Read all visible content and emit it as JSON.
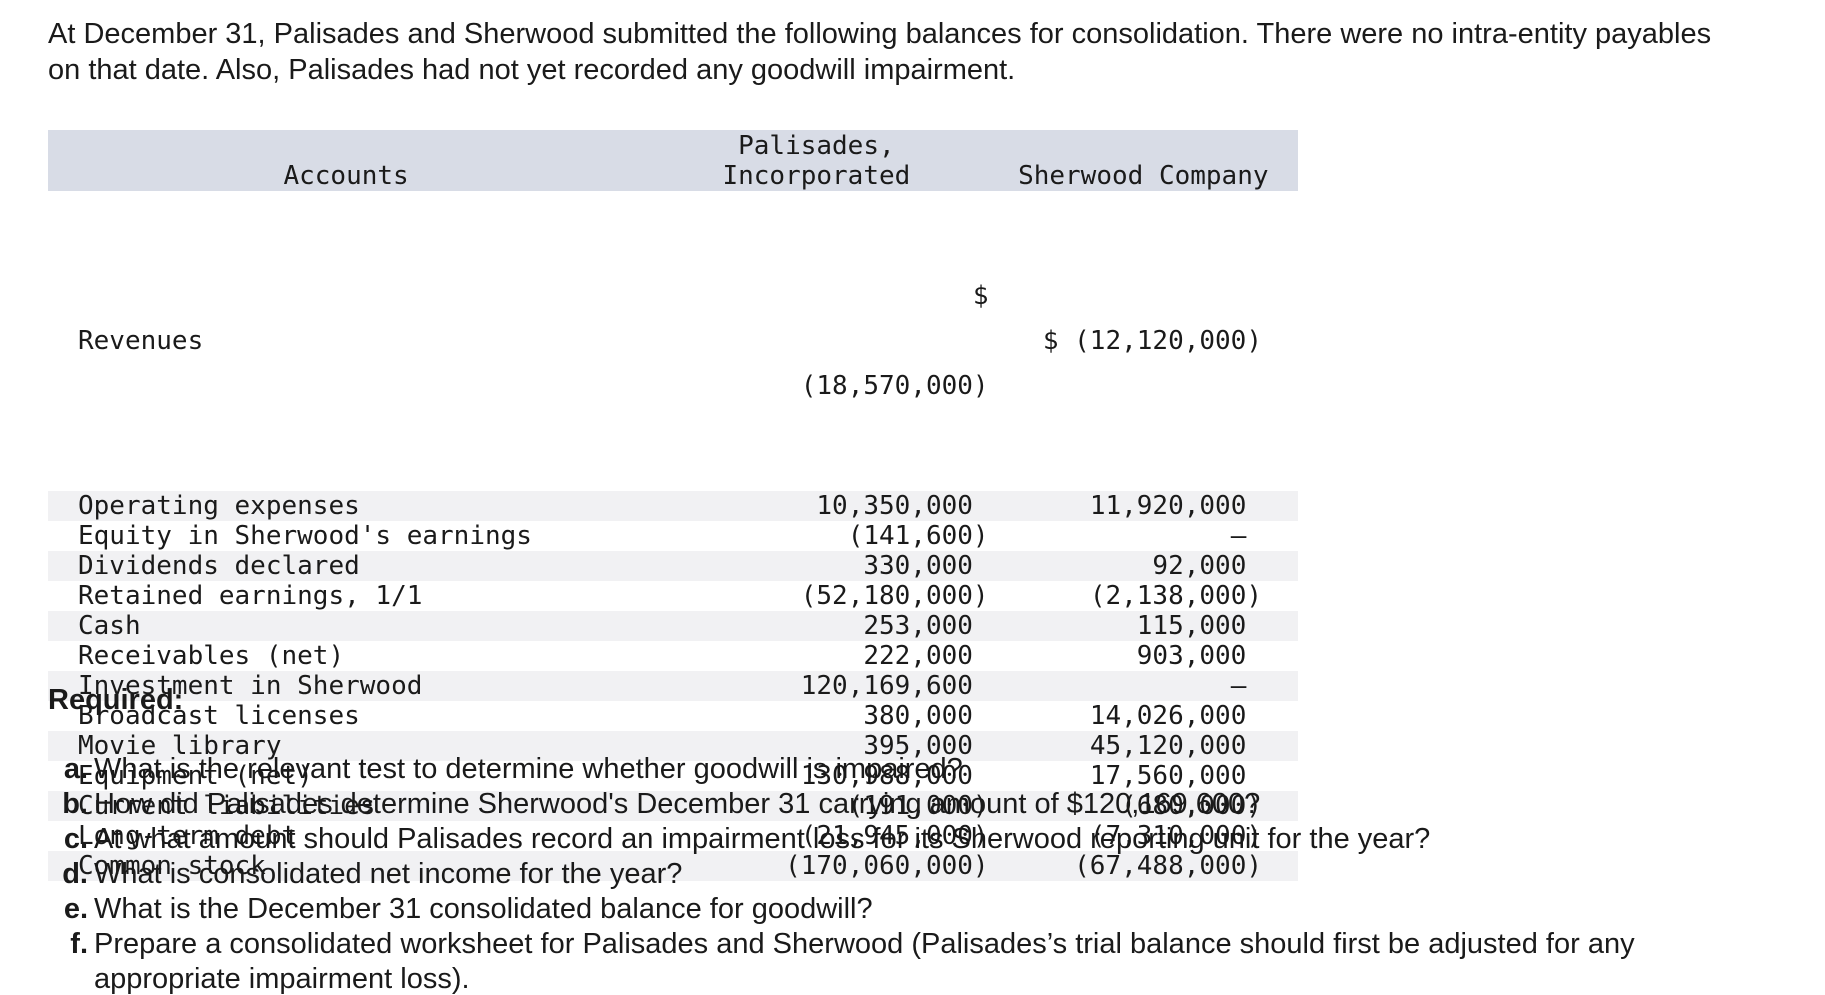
{
  "intro": "At December 31, Palisades and Sherwood submitted the following balances for consolidation. There were no intra-entity payables on that date. Also, Palisades had not yet recorded any goodwill impairment.",
  "table": {
    "headers": {
      "accounts": "Accounts",
      "palisades_line1": "Palisades,",
      "palisades_line2": "Incorporated",
      "sherwood": "Sherwood Company"
    },
    "first_row": {
      "account": "Revenues",
      "palisades_symbol": "$",
      "palisades_value": "(18,570,000)",
      "sherwood": "$ (12,120,000)"
    },
    "rows": [
      {
        "account": "Operating expenses",
        "palisades": "10,350,000 ",
        "sherwood": "11,920,000 "
      },
      {
        "account": "Equity in Sherwood's earnings",
        "palisades": "(141,600)",
        "sherwood": "– "
      },
      {
        "account": "Dividends declared",
        "palisades": "330,000 ",
        "sherwood": "92,000 "
      },
      {
        "account": "Retained earnings, 1/1",
        "palisades": "(52,180,000)",
        "sherwood": "(2,138,000)"
      },
      {
        "account": "Cash",
        "palisades": "253,000 ",
        "sherwood": "115,000 "
      },
      {
        "account": "Receivables (net)",
        "palisades": "222,000 ",
        "sherwood": "903,000 "
      },
      {
        "account": "Investment in Sherwood",
        "palisades": "120,169,600 ",
        "sherwood": "– "
      },
      {
        "account": "Broadcast licenses",
        "palisades": "380,000 ",
        "sherwood": "14,026,000 "
      },
      {
        "account": "Movie library",
        "palisades": "395,000 ",
        "sherwood": "45,120,000 "
      },
      {
        "account": "Equipment (net)",
        "palisades": "130,988,000 ",
        "sherwood": "17,560,000 "
      },
      {
        "account": "Current liabilities",
        "palisades": "(191,000)",
        "sherwood": "(680,000)"
      },
      {
        "account": "Long-term debt",
        "palisades": "(21,945,000)",
        "sherwood": "(7,310,000)"
      },
      {
        "account": "Common stock",
        "palisades": "(170,060,000)",
        "sherwood": "(67,488,000)"
      }
    ]
  },
  "required_label": "Required:",
  "questions": [
    {
      "letter": "a.",
      "text": "What is the relevant test to determine whether goodwill is impaired?"
    },
    {
      "letter": "b.",
      "text": "How did Palisades determine Sherwood's December 31 carrying amount of $120,169,600?"
    },
    {
      "letter": "c.",
      "text": "At what amount should Palisades record an impairment loss for its Sherwood reporting unit for the year?"
    },
    {
      "letter": "d.",
      "text": "What is consolidated net income for the year?"
    },
    {
      "letter": "e.",
      "text": "What is the December 31 consolidated balance for goodwill?"
    },
    {
      "letter": "f.",
      "text": "Prepare a consolidated worksheet for Palisades and Sherwood (Palisades’s trial balance should first be adjusted for any appropriate impairment loss)."
    }
  ]
}
